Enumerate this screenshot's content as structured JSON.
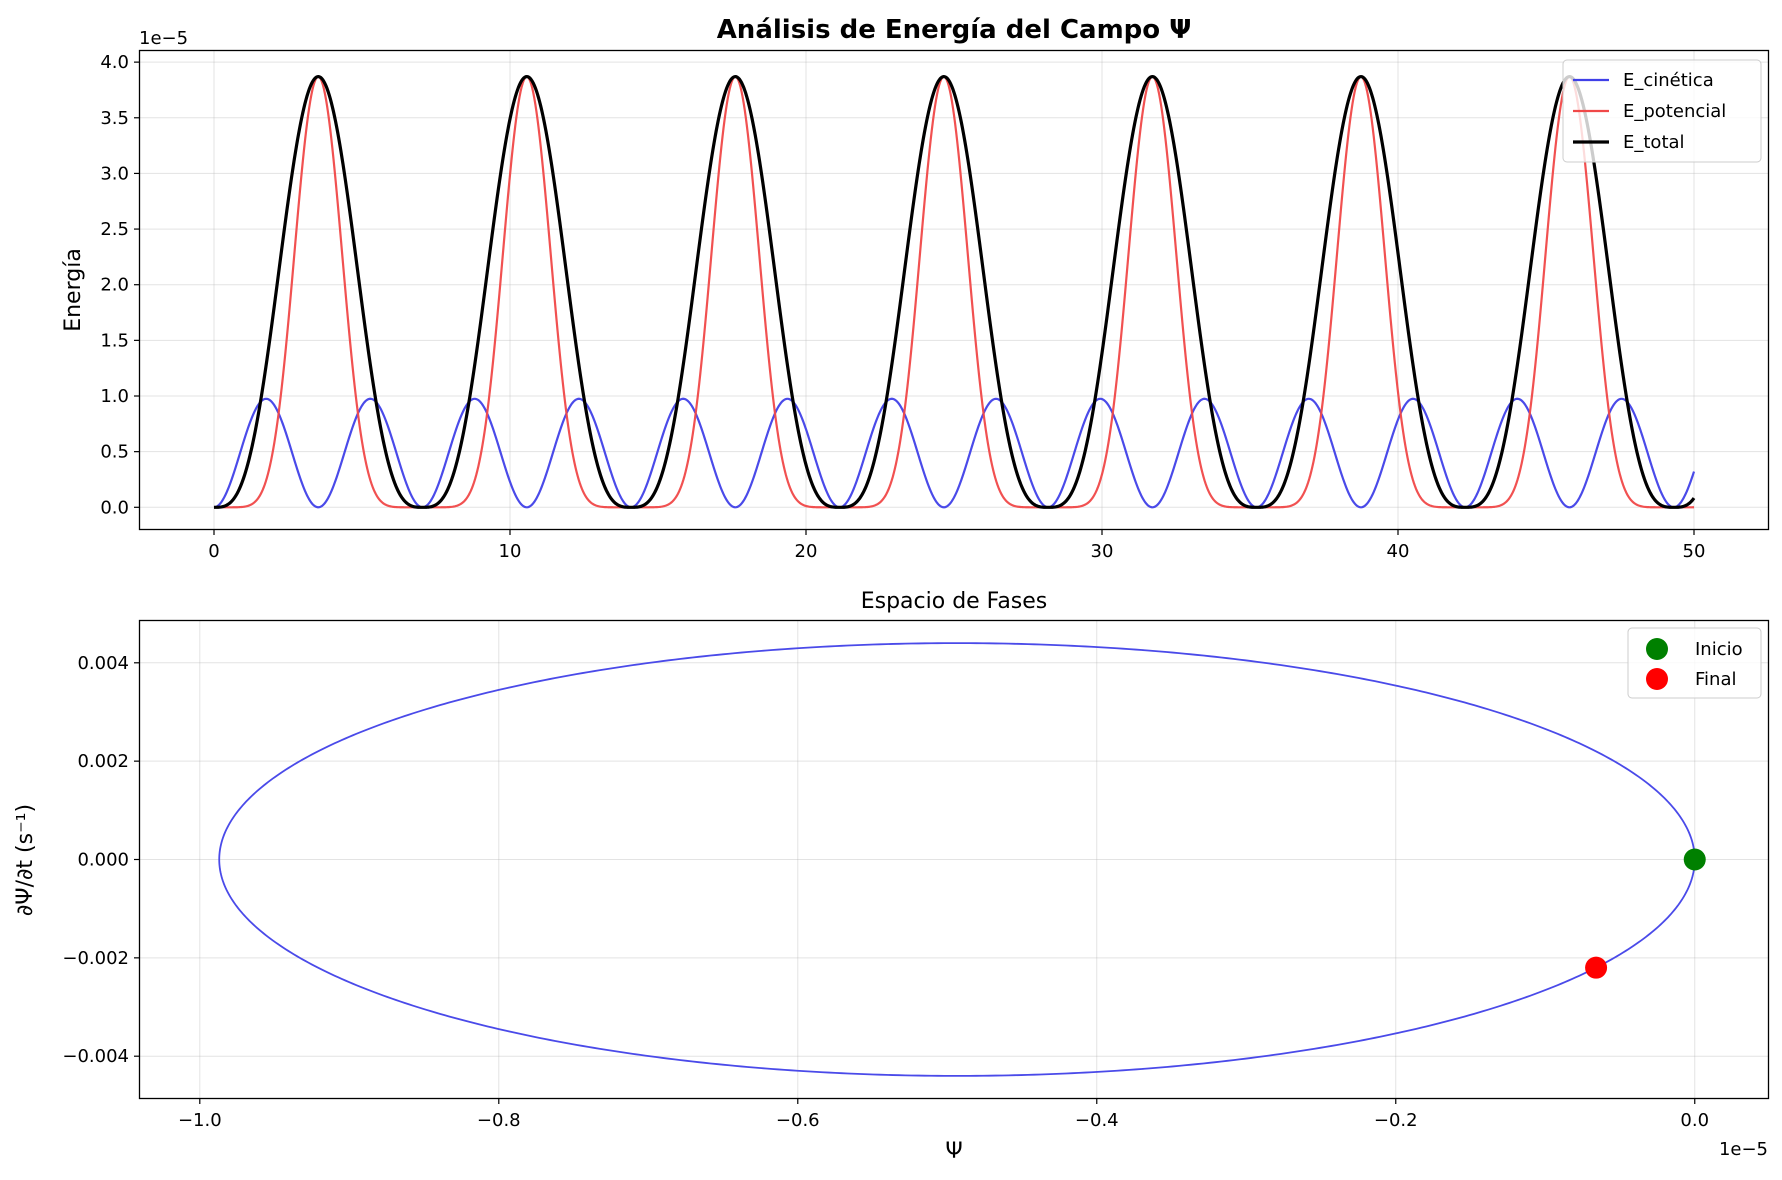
{
  "chart_data": [
    {
      "type": "line",
      "title": "Análisis de Energía del Campo Ψ",
      "xlabel": "",
      "ylabel": "Energía",
      "y_offset_label": "1e−5",
      "xlim": [
        -2.5,
        52.5
      ],
      "ylim": [
        -0.195,
        4.1
      ],
      "x_ticks": [
        0,
        10,
        20,
        30,
        40,
        50
      ],
      "x_tick_labels": [
        "0",
        "10",
        "20",
        "30",
        "40",
        "50"
      ],
      "y_ticks": [
        0.0,
        0.5,
        1.0,
        1.5,
        2.0,
        2.5,
        3.0,
        3.5,
        4.0
      ],
      "y_tick_labels": [
        "0.0",
        "0.5",
        "1.0",
        "1.5",
        "2.0",
        "2.5",
        "3.0",
        "3.5",
        "4.0"
      ],
      "grid": true,
      "legend_position": "top-right",
      "series": [
        {
          "name": "E_cinética",
          "color": "#4040e8",
          "amplitude": 0.975,
          "shape": "sin²(ωt)·cos²(ωt) scaled, peaks ≈0.975 every ≈3.52 in t",
          "period": 3.52
        },
        {
          "name": "E_potencial",
          "color": "#f04848",
          "amplitude": 3.87,
          "shape": "sin⁴(ωt/2) scaled, peaks ≈3.87 at t≈3.52, 10.57, 17.61, 24.66, 31.70, 38.75, 45.79",
          "period": 7.045
        },
        {
          "name": "E_total",
          "color": "#000000",
          "amplitude": 3.87,
          "shape": "sum of kinetic and potential, peaks ≈3.87, returns to 0 at t≈0, 7.05, 14.09, 21.14, 28.18, 35.23, 42.27, 49.3",
          "period": 7.045
        }
      ],
      "t_range": [
        0,
        50
      ],
      "omega": 0.8918
    },
    {
      "type": "line",
      "title": "Espacio de Fases",
      "xlabel": "Ψ",
      "ylabel": "∂Ψ/∂t (s⁻¹)",
      "x_offset_label": "1e−5",
      "xlim": [
        -1.04,
        0.049
      ],
      "ylim": [
        -0.00485,
        0.00485
      ],
      "x_ticks": [
        -1.0,
        -0.8,
        -0.6,
        -0.4,
        -0.2,
        0.0
      ],
      "x_tick_labels": [
        "−1.0",
        "−0.8",
        "−0.6",
        "−0.4",
        "−0.2",
        "0.0"
      ],
      "y_ticks": [
        -0.004,
        -0.002,
        0.0,
        0.002,
        0.004
      ],
      "y_tick_labels": [
        "−0.004",
        "−0.002",
        "0.000",
        "0.002",
        "0.004"
      ],
      "grid": true,
      "legend_position": "top-right",
      "trajectory": {
        "center_x": -0.4935,
        "radius_x": 0.4935,
        "center_y": 0.0,
        "radius_y": 0.0044,
        "color": "#4040e8"
      },
      "markers": [
        {
          "name": "Inicio",
          "x": 0.0,
          "y": 0.0,
          "color": "#008000"
        },
        {
          "name": "Final",
          "x": -0.066,
          "y": -0.0022,
          "color": "#ff0000"
        }
      ]
    }
  ]
}
